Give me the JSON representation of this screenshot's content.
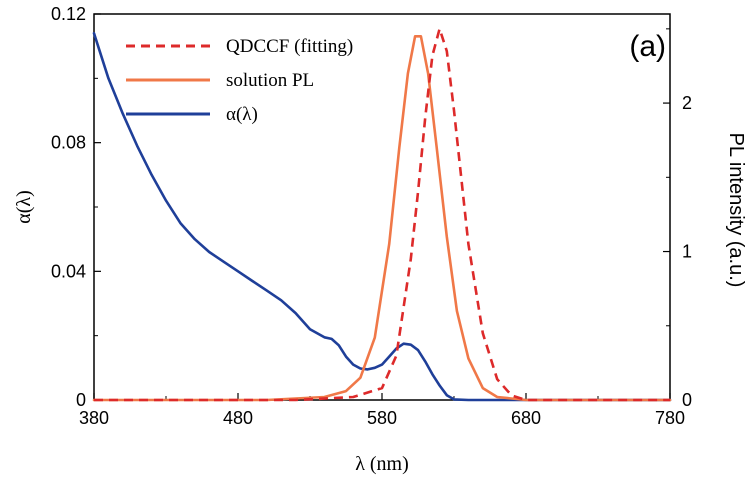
{
  "chart_data": {
    "type": "line",
    "panel_label": "(a)",
    "xlabel": "λ (nm)",
    "ylabel_left": "α(λ)",
    "ylabel_right": "PL intensity (a.u.)",
    "xlim": [
      380,
      780
    ],
    "ylim_left": [
      0,
      0.12
    ],
    "ylim_right": [
      0,
      2.6
    ],
    "x_ticks": [
      380,
      480,
      580,
      680,
      780
    ],
    "x_tick_labels": [
      "380",
      "480",
      "580",
      "680",
      "780"
    ],
    "y_left_ticks": [
      0,
      0.04,
      0.08,
      0.12
    ],
    "y_left_tick_labels": [
      "0",
      "0.04",
      "0.08",
      "0.12"
    ],
    "y_right_ticks": [
      0,
      1,
      2
    ],
    "y_right_tick_labels": [
      "0",
      "1",
      "2"
    ],
    "legend_position": "top-center",
    "series": [
      {
        "name": "QDCCF (fitting)",
        "axis": "right",
        "color": "#dd2a2a",
        "style": "dashed",
        "x": [
          380,
          520,
          560,
          580,
          590,
          600,
          605,
          610,
          615,
          620,
          625,
          630,
          635,
          640,
          650,
          660,
          670,
          680,
          780
        ],
        "y": [
          0,
          0,
          0.02,
          0.08,
          0.3,
          0.95,
          1.4,
          1.9,
          2.32,
          2.5,
          2.35,
          1.95,
          1.5,
          1.05,
          0.45,
          0.14,
          0.03,
          0,
          0
        ]
      },
      {
        "name": "solution PL",
        "axis": "right",
        "color": "#f07848",
        "style": "solid",
        "x": [
          380,
          500,
          540,
          555,
          565,
          575,
          585,
          592,
          598,
          603,
          607,
          612,
          618,
          625,
          632,
          640,
          650,
          660,
          680,
          780
        ],
        "y": [
          0,
          0,
          0.02,
          0.06,
          0.15,
          0.42,
          1.05,
          1.7,
          2.2,
          2.45,
          2.45,
          2.2,
          1.7,
          1.1,
          0.6,
          0.28,
          0.08,
          0.02,
          0,
          0
        ]
      },
      {
        "name": "α(λ)",
        "axis": "left",
        "color": "#1f3f99",
        "style": "solid",
        "x": [
          380,
          390,
          400,
          410,
          420,
          430,
          440,
          450,
          460,
          470,
          480,
          490,
          500,
          510,
          520,
          530,
          540,
          545,
          550,
          555,
          560,
          565,
          570,
          575,
          580,
          585,
          590,
          595,
          600,
          605,
          610,
          615,
          620,
          625,
          630,
          640,
          680,
          780
        ],
        "y": [
          0.114,
          0.1,
          0.089,
          0.079,
          0.07,
          0.062,
          0.055,
          0.05,
          0.046,
          0.043,
          0.04,
          0.037,
          0.034,
          0.031,
          0.027,
          0.022,
          0.0195,
          0.019,
          0.017,
          0.0135,
          0.011,
          0.0098,
          0.0095,
          0.01,
          0.011,
          0.0135,
          0.016,
          0.0175,
          0.0172,
          0.0155,
          0.012,
          0.008,
          0.0045,
          0.0015,
          0.0002,
          0,
          0,
          0
        ]
      }
    ]
  }
}
